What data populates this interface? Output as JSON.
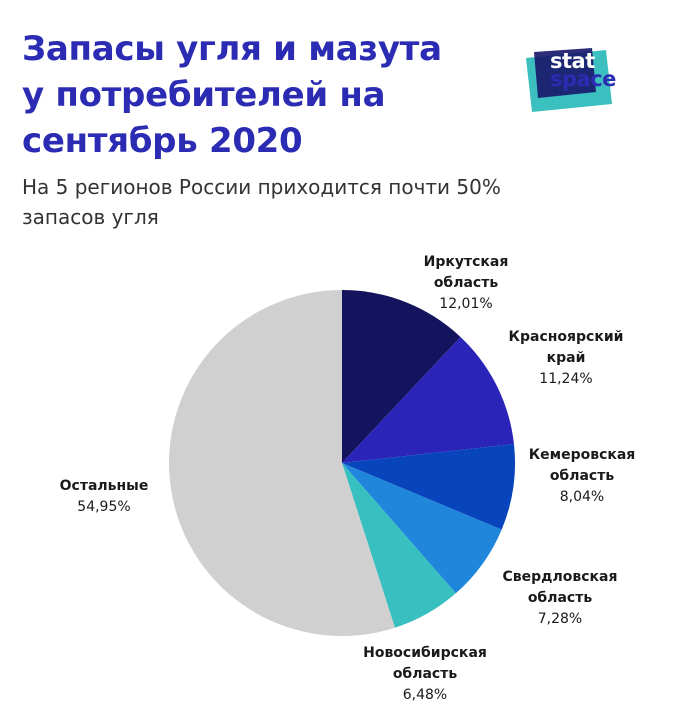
{
  "title_lines": [
    "Запасы угля и мазута",
    "у потребителей на",
    "сентябрь 2020"
  ],
  "subtitle_lines": [
    "На 5 регионов России приходится почти 50%",
    "запасов угля"
  ],
  "logo": {
    "line1": "stat",
    "line2": "space"
  },
  "colors": {
    "title": "#2b2bb3",
    "logo_teal": "#3bbfbf",
    "logo_navy": "#1a1a6e"
  },
  "chart_data": {
    "type": "pie",
    "title": "Запасы угля и мазута у потребителей на сентябрь 2020",
    "slices": [
      {
        "label": [
          "Иркутская",
          "область"
        ],
        "value": 12.01,
        "value_label": "12,01%",
        "color": "#14145e"
      },
      {
        "label": [
          "Красноярский",
          "край"
        ],
        "value": 11.24,
        "value_label": "11,24%",
        "color": "#2b24b8"
      },
      {
        "label": [
          "Кемеровская",
          "область"
        ],
        "value": 8.04,
        "value_label": "8,04%",
        "color": "#0844bb"
      },
      {
        "label": [
          "Свердловская",
          "область"
        ],
        "value": 7.28,
        "value_label": "7,28%",
        "color": "#1f86db"
      },
      {
        "label": [
          "Новосибирская",
          "область"
        ],
        "value": 6.48,
        "value_label": "6,48%",
        "color": "#38bfbf"
      },
      {
        "label": [
          "Остальные"
        ],
        "value": 54.95,
        "value_label": "54,95%",
        "color": "#d0d0d0"
      }
    ],
    "start_angle": "12 o'clock",
    "direction": "clockwise"
  }
}
